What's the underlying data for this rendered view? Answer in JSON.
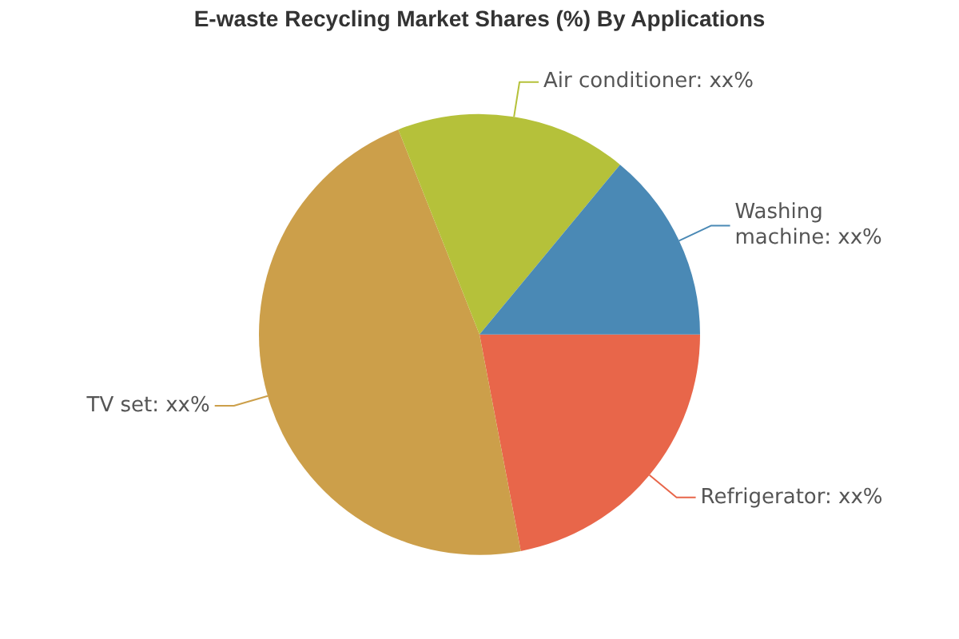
{
  "chart_data": {
    "type": "pie",
    "title": "E-waste Recycling Market Shares (%) By Applications",
    "categories": [
      "Refrigerator",
      "TV set",
      "Air conditioner",
      "Washing machine"
    ],
    "values": [
      22,
      47,
      17,
      14
    ],
    "colors": [
      "#e8664a",
      "#cc9f4a",
      "#b5c13a",
      "#4a89b5"
    ],
    "value_labels": [
      "xx%",
      "xx%",
      "xx%",
      "xx%"
    ],
    "legend": false
  }
}
